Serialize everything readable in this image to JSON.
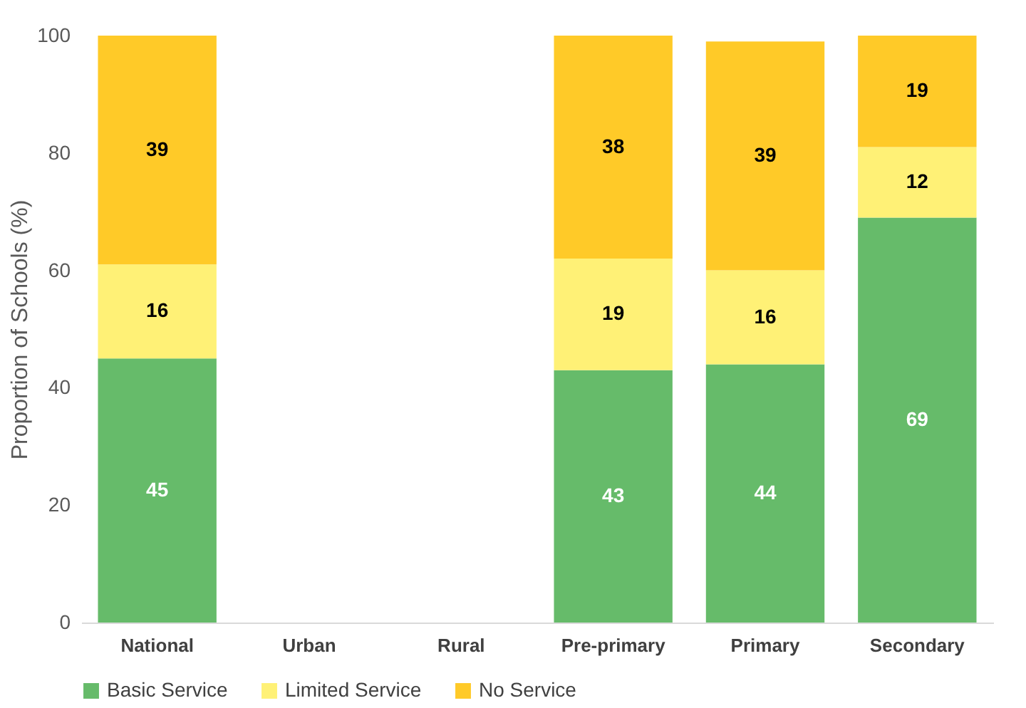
{
  "chart_data": {
    "type": "bar",
    "stacked": true,
    "ylabel": "Proportion of Schools (%)",
    "categories": [
      "National",
      "Urban",
      "Rural",
      "Pre-primary",
      "Primary",
      "Secondary"
    ],
    "series": [
      {
        "name": "Basic Service",
        "color": "#66bb6a",
        "values": [
          45,
          null,
          null,
          43,
          44,
          69
        ]
      },
      {
        "name": "Limited Service",
        "color": "#fff176",
        "values": [
          16,
          null,
          null,
          19,
          16,
          12
        ]
      },
      {
        "name": "No Service",
        "color": "#ffca28",
        "values": [
          39,
          null,
          null,
          38,
          39,
          19
        ]
      }
    ],
    "ylim": [
      0,
      100
    ],
    "yticks": [
      0,
      20,
      40,
      60,
      80,
      100
    ],
    "grid": false,
    "legend": "bottom",
    "data_labels": true
  }
}
